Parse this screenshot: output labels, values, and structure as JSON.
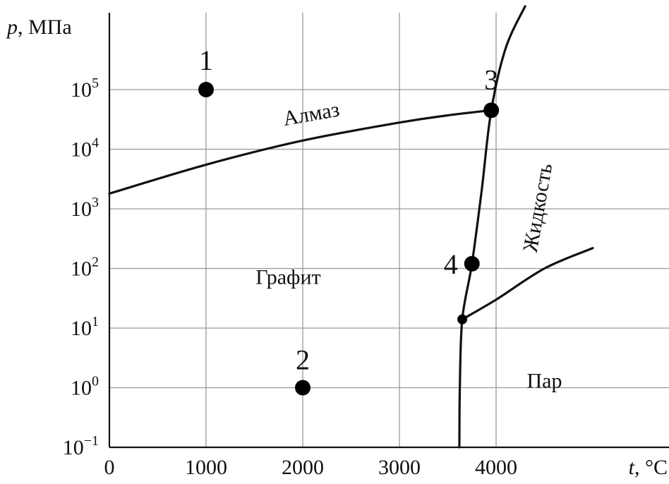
{
  "chart_data": {
    "type": "line",
    "title": "",
    "xlabel_italic": "t",
    "xlabel_unit": ", °C",
    "ylabel_italic": "p",
    "ylabel_unit": ", МПа",
    "x_ticks": [
      "0",
      "1000",
      "2000",
      "3000",
      "4000"
    ],
    "y_ticks": [
      {
        "base": "10",
        "exp": "−1"
      },
      {
        "base": "10",
        "exp": "0"
      },
      {
        "base": "10",
        "exp": "1"
      },
      {
        "base": "10",
        "exp": "2"
      },
      {
        "base": "10",
        "exp": "3"
      },
      {
        "base": "10",
        "exp": "4"
      },
      {
        "base": "10",
        "exp": "5"
      }
    ],
    "y_scale": "log",
    "xlim": [
      0,
      5400
    ],
    "ylim": [
      0.1,
      1000000
    ],
    "grid": true,
    "series": [
      {
        "points": [
          [
            0,
            1800
          ],
          [
            1000,
            5500
          ],
          [
            2000,
            14000
          ],
          [
            3000,
            28000
          ],
          [
            3500,
            37000
          ],
          [
            3950,
            45000
          ]
        ]
      },
      {
        "points": [
          [
            3620,
            0.1
          ],
          [
            3625,
            1
          ],
          [
            3650,
            14
          ],
          [
            3750,
            120
          ],
          [
            3850,
            2000
          ],
          [
            3950,
            45000
          ],
          [
            4100,
            500000
          ],
          [
            4300,
            2500000
          ]
        ]
      },
      {
        "points": [
          [
            3650,
            14
          ],
          [
            4000,
            30
          ],
          [
            4500,
            100
          ],
          [
            5000,
            220
          ]
        ]
      }
    ],
    "points": [
      {
        "label": "1",
        "x": 1000,
        "y": 100000
      },
      {
        "label": "2",
        "x": 2000,
        "y": 1
      },
      {
        "label": "3",
        "x": 3950,
        "y": 45000
      },
      {
        "label": "4",
        "x": 3750,
        "y": 120
      },
      {
        "label": "",
        "x": 3650,
        "y": 14
      }
    ],
    "regions": [
      {
        "label": "Алмаз",
        "x": 2100,
        "y": 30000
      },
      {
        "label": "Графит",
        "x": 1850,
        "y": 55
      },
      {
        "label": "Жидкость",
        "x": 4500,
        "y": 1000
      },
      {
        "label": "Пар",
        "x": 4500,
        "y": 1
      }
    ]
  }
}
